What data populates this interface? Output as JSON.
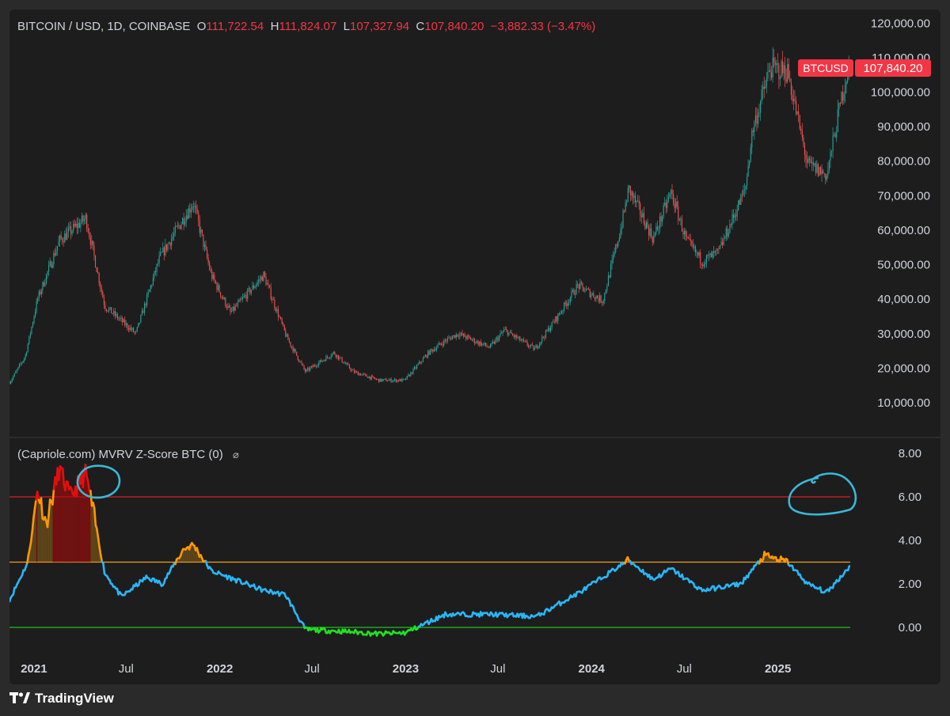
{
  "header": {
    "symbol": "BITCOIN / USD, 1D, COINBASE",
    "o_label": "O",
    "o_value": "111,722.54",
    "h_label": "H",
    "h_value": "111,824.07",
    "l_label": "L",
    "l_value": "107,327.94",
    "c_label": "C",
    "c_value": "107,840.20",
    "change": "−3,882.33 (−3.47%)"
  },
  "price_tag": {
    "symbol": "BTCUSD",
    "value": "107,840.20"
  },
  "indicator": {
    "title": "(Capriole.com) MVRV Z-Score BTC (0)",
    "settings_icon": "eye-off-icon"
  },
  "price_axis": [
    "120,000.00",
    "110,000.00",
    "100,000.00",
    "90,000.00",
    "80,000.00",
    "70,000.00",
    "60,000.00",
    "50,000.00",
    "40,000.00",
    "30,000.00",
    "20,000.00",
    "10,000.00"
  ],
  "mvrv_axis": [
    "8.00",
    "6.00",
    "4.00",
    "2.00",
    "0.00"
  ],
  "time_axis": [
    {
      "label": "2021",
      "bold": true
    },
    {
      "label": "Jul",
      "bold": false
    },
    {
      "label": "2022",
      "bold": true
    },
    {
      "label": "Jul",
      "bold": false
    },
    {
      "label": "2023",
      "bold": true
    },
    {
      "label": "Jul",
      "bold": false
    },
    {
      "label": "2024",
      "bold": true
    },
    {
      "label": "Jul",
      "bold": false
    },
    {
      "label": "2025",
      "bold": true
    }
  ],
  "brand": "TradingView",
  "colors": {
    "background": "#1d1d1e",
    "up": "#26a69a",
    "down": "#ef5350",
    "mvrv_blue": "#29b6f6",
    "mvrv_orange": "#ff9800",
    "mvrv_red": "#e01010",
    "mvrv_green": "#22e022",
    "line_red": "#e02020",
    "line_orange": "#f2a01d",
    "line_green": "#22c022",
    "annotation": "#3ab8d6"
  },
  "chart_data": [
    {
      "type": "candlestick",
      "title": "BITCOIN / USD, 1D, COINBASE",
      "ylim": [
        5000,
        120000
      ],
      "x": [
        "2020-11-15",
        "2020-12-15",
        "2021-01-08",
        "2021-02-20",
        "2021-04-13",
        "2021-05-20",
        "2021-07-20",
        "2021-09-05",
        "2021-10-20",
        "2021-11-10",
        "2021-12-15",
        "2022-01-22",
        "2022-03-28",
        "2022-05-12",
        "2022-06-18",
        "2022-08-13",
        "2022-09-20",
        "2022-11-09",
        "2022-12-30",
        "2023-02-15",
        "2023-03-20",
        "2023-04-14",
        "2023-06-15",
        "2023-07-14",
        "2023-09-11",
        "2023-10-24",
        "2023-12-05",
        "2024-01-23",
        "2024-02-28",
        "2024-03-14",
        "2024-05-01",
        "2024-06-05",
        "2024-07-05",
        "2024-08-05",
        "2024-09-06",
        "2024-10-29",
        "2024-11-12",
        "2024-12-17",
        "2025-01-20",
        "2025-02-28",
        "2025-04-07",
        "2025-05-12",
        "2025-05-22"
      ],
      "close": [
        16000,
        23500,
        40000,
        57000,
        63500,
        38000,
        30000,
        52000,
        63000,
        68000,
        47000,
        36000,
        47000,
        29000,
        19000,
        24500,
        19000,
        16500,
        16500,
        24500,
        28000,
        30000,
        26000,
        31000,
        25500,
        34500,
        44000,
        39500,
        61000,
        72000,
        57500,
        71000,
        57000,
        51000,
        53500,
        72000,
        89000,
        107000,
        106000,
        79000,
        76000,
        103000,
        107840
      ]
    },
    {
      "type": "line",
      "title": "(Capriole.com) MVRV Z-Score BTC (0)",
      "ylim": [
        -0.8,
        8.5
      ],
      "thresholds": [
        6.0,
        3.0,
        0.0
      ],
      "x": [
        "2020-11-15",
        "2020-12-20",
        "2021-01-08",
        "2021-01-25",
        "2021-02-20",
        "2021-03-13",
        "2021-04-13",
        "2021-05-08",
        "2021-05-20",
        "2021-06-22",
        "2021-08-10",
        "2021-09-10",
        "2021-10-22",
        "2021-11-10",
        "2021-12-15",
        "2022-03-28",
        "2022-05-10",
        "2022-06-18",
        "2022-09-15",
        "2022-11-09",
        "2022-12-31",
        "2023-03-20",
        "2023-06-20",
        "2023-09-15",
        "2023-12-15",
        "2024-03-14",
        "2024-05-01",
        "2024-06-05",
        "2024-08-05",
        "2024-10-20",
        "2024-12-05",
        "2025-01-20",
        "2025-02-28",
        "2025-04-07",
        "2025-05-22"
      ],
      "values": [
        1.3,
        3.0,
        6.3,
        4.8,
        7.3,
        6.0,
        7.1,
        4.0,
        2.5,
        1.4,
        2.3,
        2.0,
        3.6,
        3.8,
        2.6,
        1.7,
        1.5,
        -0.1,
        -0.2,
        -0.3,
        -0.25,
        0.6,
        0.6,
        0.5,
        1.7,
        3.1,
        2.2,
        2.7,
        1.7,
        2.0,
        3.3,
        3.0,
        2.0,
        1.6,
        2.8
      ]
    }
  ]
}
